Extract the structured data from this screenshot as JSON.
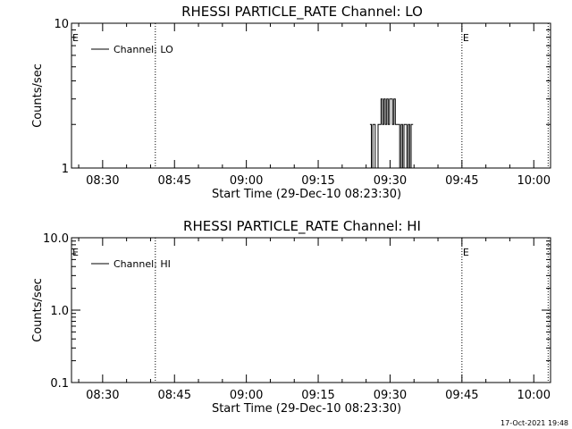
{
  "footer": {
    "timestamp": "17-Oct-2021 19:48"
  },
  "chart_data": [
    {
      "type": "line",
      "title": "RHESSI PARTICLE_RATE Channel: LO",
      "xlabel": "Start Time (29-Dec-10 08:23:30)",
      "ylabel": "Counts/sec",
      "y_scale": "log",
      "ylim": [
        1,
        10
      ],
      "y_ticks": [
        {
          "value": 1,
          "label": "1"
        },
        {
          "value": 10,
          "label": "10"
        }
      ],
      "xlim_minutes": [
        0,
        100.0
      ],
      "x_ticks": [
        {
          "label": "08:30",
          "t": 6.5
        },
        {
          "label": "08:45",
          "t": 21.5
        },
        {
          "label": "09:00",
          "t": 36.5
        },
        {
          "label": "09:15",
          "t": 51.5
        },
        {
          "label": "09:30",
          "t": 66.5
        },
        {
          "label": "09:45",
          "t": 81.5
        },
        {
          "label": "10:00",
          "t": 96.5
        }
      ],
      "events": [
        {
          "t": 17.5,
          "label": ""
        },
        {
          "t": 81.5,
          "label": "E"
        },
        {
          "t": 99.5,
          "label": ""
        }
      ],
      "left_marker": "E",
      "legend": {
        "position": "top-left",
        "entries": [
          "Channel: LO"
        ]
      },
      "series": [
        {
          "name": "Channel: LO",
          "x": [
            62.3,
            62.6,
            62.6,
            62.9,
            62.9,
            63.4,
            63.4,
            64.0,
            64.0,
            64.3,
            64.3,
            64.6,
            64.6,
            64.9,
            64.9,
            65.2,
            65.2,
            65.5,
            65.5,
            65.8,
            65.8,
            66.1,
            66.1,
            66.4,
            66.4,
            66.7,
            66.7,
            67.0,
            67.0,
            67.3,
            67.3,
            67.6,
            67.6,
            67.9,
            67.9,
            68.2,
            68.2,
            68.5,
            68.5,
            68.8,
            68.8,
            69.1,
            69.1,
            69.4,
            69.4,
            70.0,
            70.0,
            70.3,
            70.3,
            70.6,
            70.6,
            70.9,
            70.9,
            71.3
          ],
          "y": [
            2,
            2,
            1,
            1,
            2,
            2,
            1,
            1,
            2,
            2,
            2,
            2,
            3,
            3,
            2,
            2,
            3,
            3,
            2,
            2,
            3,
            3,
            2,
            2,
            3,
            3,
            3,
            3,
            2,
            2,
            3,
            3,
            2,
            2,
            2,
            2,
            2,
            2,
            1,
            1,
            2,
            2,
            1,
            1,
            2,
            2,
            1,
            1,
            2,
            2,
            1,
            1,
            2,
            2
          ]
        }
      ]
    },
    {
      "type": "line",
      "title": "RHESSI PARTICLE_RATE Channel: HI",
      "xlabel": "Start Time (29-Dec-10 08:23:30)",
      "ylabel": "Counts/sec",
      "y_scale": "log",
      "ylim": [
        0.1,
        10
      ],
      "y_ticks": [
        {
          "value": 0.1,
          "label": "0.1"
        },
        {
          "value": 1,
          "label": "1.0"
        },
        {
          "value": 10,
          "label": "10.0"
        }
      ],
      "xlim_minutes": [
        0,
        100.0
      ],
      "x_ticks": [
        {
          "label": "08:30",
          "t": 6.5
        },
        {
          "label": "08:45",
          "t": 21.5
        },
        {
          "label": "09:00",
          "t": 36.5
        },
        {
          "label": "09:15",
          "t": 51.5
        },
        {
          "label": "09:30",
          "t": 66.5
        },
        {
          "label": "09:45",
          "t": 81.5
        },
        {
          "label": "10:00",
          "t": 96.5
        }
      ],
      "events": [
        {
          "t": 17.5,
          "label": ""
        },
        {
          "t": 81.5,
          "label": "E"
        },
        {
          "t": 99.5,
          "label": ""
        }
      ],
      "left_marker": "E",
      "legend": {
        "position": "top-left",
        "entries": [
          "Channel: HI"
        ]
      },
      "series": [
        {
          "name": "Channel: HI",
          "x": [],
          "y": []
        }
      ]
    }
  ]
}
